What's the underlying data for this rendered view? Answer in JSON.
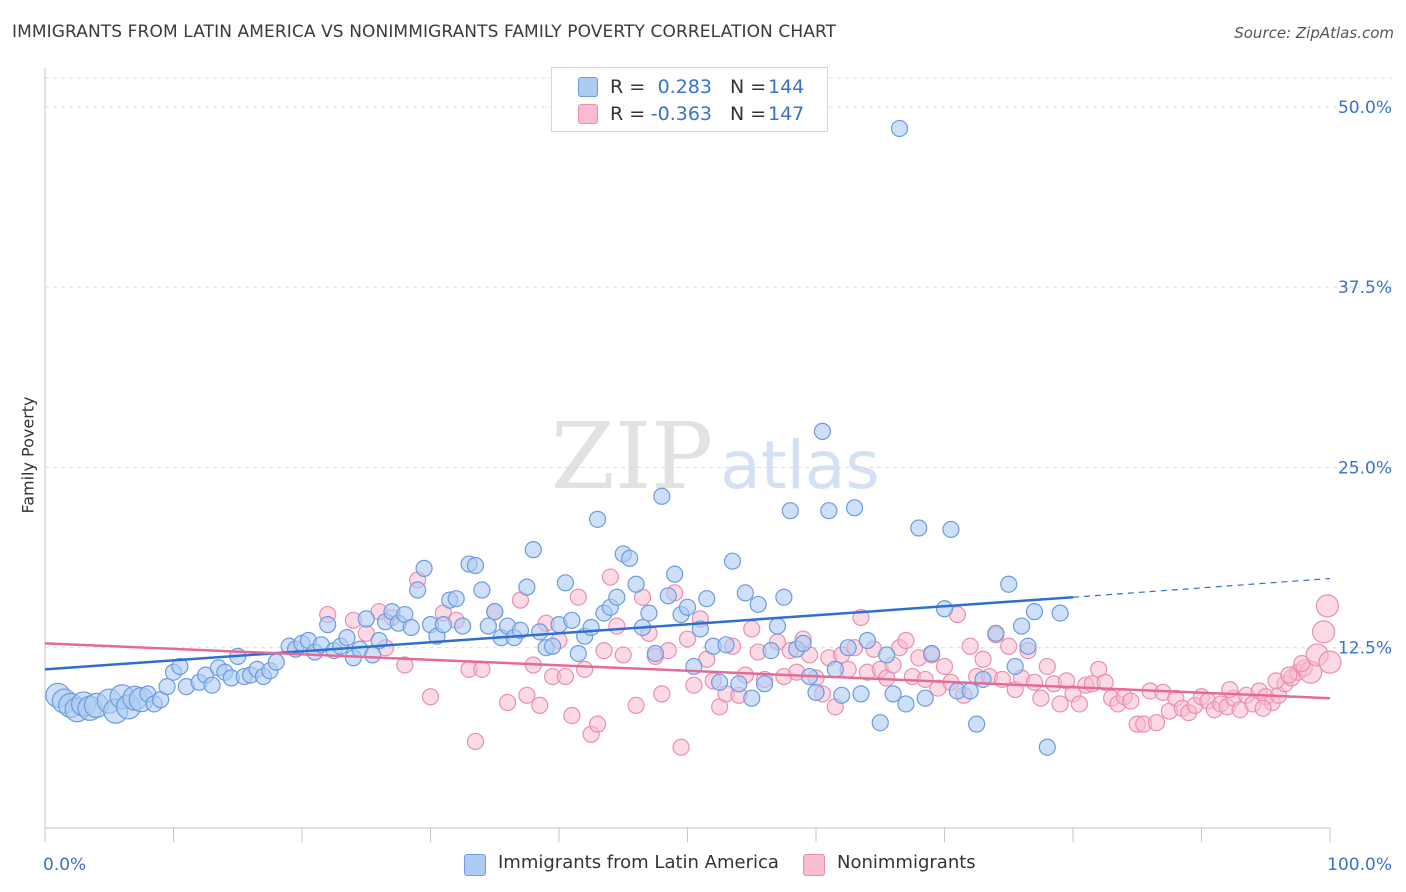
{
  "title": "IMMIGRANTS FROM LATIN AMERICA VS NONIMMIGRANTS FAMILY POVERTY CORRELATION CHART",
  "source": "Source: ZipAtlas.com",
  "watermark": {
    "zip": "ZIP",
    "atlas": "atlas"
  },
  "legend": {
    "series1": {
      "r_label": "R =",
      "r_value": "0.283",
      "n_label": "N =",
      "n_value": "144"
    },
    "series2": {
      "r_label": "R =",
      "r_value": "-0.363",
      "n_label": "N =",
      "n_value": "147"
    }
  },
  "colors": {
    "blue_fill": "#aecbf1",
    "blue_stroke": "#6c9be0",
    "blue_line": "#2f6fd0",
    "pink_fill": "#f7bccf",
    "pink_stroke": "#ea8fae",
    "pink_line": "#e66a96",
    "value_text": "#3a72c8",
    "grid": "#dcdcdc"
  },
  "chart_data": {
    "type": "scatter",
    "xlabel": "",
    "ylabel": "Family Poverty",
    "xlim": [
      0,
      100
    ],
    "ylim": [
      0,
      52
    ],
    "x_tick_labels": [
      "0.0%",
      "100.0%"
    ],
    "y_ticks": [
      {
        "value": 12.5,
        "label": "12.5%"
      },
      {
        "value": 25.0,
        "label": "25.0%"
      },
      {
        "value": 37.5,
        "label": "37.5%"
      },
      {
        "value": 50.0,
        "label": "50.0%"
      }
    ],
    "grid": "horizontal dashed",
    "legend_position": "top-center, bottom-center",
    "series": [
      {
        "name": "Immigrants from Latin America",
        "r": 0.283,
        "n": 144,
        "trend": {
          "x0": 0,
          "y0": 11.0,
          "x1": 80,
          "y1": 16.0,
          "dashed_to_x": 100,
          "dashed_to_y": 17.3
        },
        "points": [
          [
            1,
            9.2
          ],
          [
            1.5,
            8.8
          ],
          [
            2,
            8.5
          ],
          [
            2.5,
            8.2
          ],
          [
            3,
            8.6
          ],
          [
            3.5,
            8.3
          ],
          [
            4,
            8.5
          ],
          [
            5,
            8.8
          ],
          [
            5.5,
            8.1
          ],
          [
            6,
            9.1
          ],
          [
            6.5,
            8.4
          ],
          [
            7,
            9.0
          ],
          [
            7.5,
            8.9
          ],
          [
            8,
            9.3
          ],
          [
            8.5,
            8.6
          ],
          [
            9,
            8.9
          ],
          [
            9.5,
            9.8
          ],
          [
            10,
            10.8
          ],
          [
            10.5,
            11.2
          ],
          [
            11,
            9.8
          ],
          [
            12,
            10.1
          ],
          [
            12.5,
            10.6
          ],
          [
            13,
            9.9
          ],
          [
            13.5,
            11.1
          ],
          [
            14,
            10.8
          ],
          [
            14.5,
            10.4
          ],
          [
            15,
            11.9
          ],
          [
            15.5,
            10.5
          ],
          [
            16,
            10.6
          ],
          [
            16.5,
            11.0
          ],
          [
            17,
            10.5
          ],
          [
            17.5,
            10.9
          ],
          [
            18,
            11.5
          ],
          [
            19,
            12.6
          ],
          [
            19.5,
            12.4
          ],
          [
            20,
            12.8
          ],
          [
            20.5,
            13.0
          ],
          [
            21,
            12.2
          ],
          [
            21.5,
            12.7
          ],
          [
            22,
            14.1
          ],
          [
            22.5,
            12.3
          ],
          [
            23,
            12.6
          ],
          [
            23.5,
            13.2
          ],
          [
            24,
            11.8
          ],
          [
            24.5,
            12.4
          ],
          [
            25,
            14.5
          ],
          [
            25.5,
            12.0
          ],
          [
            26,
            13.0
          ],
          [
            26.5,
            14.3
          ],
          [
            27,
            15.0
          ],
          [
            27.5,
            14.2
          ],
          [
            28,
            14.8
          ],
          [
            28.5,
            13.9
          ],
          [
            29,
            16.5
          ],
          [
            29.5,
            18.0
          ],
          [
            30,
            14.1
          ],
          [
            30.5,
            13.3
          ],
          [
            31,
            14.1
          ],
          [
            31.5,
            15.8
          ],
          [
            32,
            15.9
          ],
          [
            32.5,
            14.0
          ],
          [
            33,
            18.3
          ],
          [
            33.5,
            18.2
          ],
          [
            34,
            16.5
          ],
          [
            34.5,
            14.0
          ],
          [
            35,
            15.0
          ],
          [
            35.5,
            13.2
          ],
          [
            36,
            14.0
          ],
          [
            36.5,
            13.2
          ],
          [
            37,
            13.7
          ],
          [
            37.5,
            16.7
          ],
          [
            38,
            19.3
          ],
          [
            38.5,
            13.6
          ],
          [
            39,
            12.5
          ],
          [
            39.5,
            12.6
          ],
          [
            40,
            14.1
          ],
          [
            40.5,
            17.0
          ],
          [
            41,
            14.4
          ],
          [
            41.5,
            12.1
          ],
          [
            42,
            13.3
          ],
          [
            42.5,
            13.9
          ],
          [
            43,
            21.4
          ],
          [
            43.5,
            14.9
          ],
          [
            44,
            15.3
          ],
          [
            44.5,
            16.0
          ],
          [
            45,
            19.0
          ],
          [
            45.5,
            18.7
          ],
          [
            46,
            16.9
          ],
          [
            46.5,
            13.9
          ],
          [
            47,
            14.9
          ],
          [
            47.5,
            12.1
          ],
          [
            48,
            23.0
          ],
          [
            48.5,
            16.1
          ],
          [
            49,
            17.6
          ],
          [
            49.5,
            14.8
          ],
          [
            50,
            15.3
          ],
          [
            50.5,
            11.2
          ],
          [
            51,
            13.8
          ],
          [
            51.5,
            15.9
          ],
          [
            52,
            12.6
          ],
          [
            52.5,
            10.1
          ],
          [
            53,
            12.7
          ],
          [
            53.5,
            18.5
          ],
          [
            54,
            10.0
          ],
          [
            54.5,
            16.3
          ],
          [
            55,
            9.0
          ],
          [
            55.5,
            15.5
          ],
          [
            56,
            10.0
          ],
          [
            56.5,
            12.3
          ],
          [
            57,
            14.0
          ],
          [
            57.5,
            16.0
          ],
          [
            58,
            22.0
          ],
          [
            58.5,
            12.4
          ],
          [
            59,
            12.8
          ],
          [
            59.5,
            10.5
          ],
          [
            60,
            9.4
          ],
          [
            60.5,
            27.5
          ],
          [
            61,
            22.0
          ],
          [
            61.5,
            11.0
          ],
          [
            62,
            9.2
          ],
          [
            62.5,
            12.5
          ],
          [
            63,
            22.2
          ],
          [
            63.5,
            9.3
          ],
          [
            64,
            13.0
          ],
          [
            65,
            7.3
          ],
          [
            65.5,
            12.0
          ],
          [
            66,
            9.3
          ],
          [
            66.5,
            48.5
          ],
          [
            67,
            8.6
          ],
          [
            68,
            20.8
          ],
          [
            68.5,
            9.0
          ],
          [
            69,
            12.1
          ],
          [
            70,
            15.2
          ],
          [
            70.5,
            20.7
          ],
          [
            71,
            9.5
          ],
          [
            72,
            9.5
          ],
          [
            72.5,
            7.2
          ],
          [
            73,
            10.3
          ],
          [
            74,
            13.5
          ],
          [
            75,
            16.9
          ],
          [
            75.5,
            11.2
          ],
          [
            76,
            14.0
          ],
          [
            76.5,
            12.6
          ],
          [
            77,
            15.0
          ],
          [
            78,
            5.6
          ],
          [
            79,
            14.9
          ]
        ]
      },
      {
        "name": "Nonimmigrants",
        "r": -0.363,
        "n": 147,
        "trend": {
          "x0": 0,
          "y0": 12.8,
          "x1": 100,
          "y1": 9.0
        },
        "points": [
          [
            22,
            14.8
          ],
          [
            24,
            14.4
          ],
          [
            25,
            13.5
          ],
          [
            26,
            15.0
          ],
          [
            26.5,
            12.5
          ],
          [
            27,
            14.6
          ],
          [
            28,
            11.3
          ],
          [
            29,
            17.2
          ],
          [
            30,
            9.1
          ],
          [
            31,
            14.9
          ],
          [
            32,
            14.4
          ],
          [
            33,
            11.0
          ],
          [
            33.5,
            6.0
          ],
          [
            34,
            11.0
          ],
          [
            35,
            15.0
          ],
          [
            36,
            8.7
          ],
          [
            37,
            15.8
          ],
          [
            37.5,
            9.2
          ],
          [
            38,
            11.3
          ],
          [
            38.5,
            8.5
          ],
          [
            39,
            14.2
          ],
          [
            39.5,
            10.5
          ],
          [
            40,
            13.0
          ],
          [
            40.5,
            10.5
          ],
          [
            41,
            7.8
          ],
          [
            41.5,
            16.0
          ],
          [
            42,
            11.0
          ],
          [
            42.5,
            6.5
          ],
          [
            43,
            7.2
          ],
          [
            43.5,
            12.3
          ],
          [
            44,
            17.4
          ],
          [
            44.5,
            14.0
          ],
          [
            45,
            12.0
          ],
          [
            46,
            8.5
          ],
          [
            46.5,
            16.0
          ],
          [
            47,
            13.5
          ],
          [
            47.5,
            11.9
          ],
          [
            48,
            9.3
          ],
          [
            48.5,
            12.3
          ],
          [
            49,
            16.3
          ],
          [
            49.5,
            5.6
          ],
          [
            50,
            13.1
          ],
          [
            50.5,
            9.9
          ],
          [
            51,
            14.5
          ],
          [
            51.5,
            11.7
          ],
          [
            52,
            10.2
          ],
          [
            52.5,
            8.4
          ],
          [
            53,
            9.3
          ],
          [
            53.5,
            12.6
          ],
          [
            54,
            9.2
          ],
          [
            54.5,
            10.6
          ],
          [
            55,
            13.8
          ],
          [
            55.5,
            12.2
          ],
          [
            56,
            10.3
          ],
          [
            57,
            12.9
          ],
          [
            57.5,
            10.5
          ],
          [
            58,
            12.3
          ],
          [
            58.5,
            10.8
          ],
          [
            59,
            13.1
          ],
          [
            59.5,
            12.0
          ],
          [
            60,
            10.4
          ],
          [
            60.5,
            9.3
          ],
          [
            61,
            11.8
          ],
          [
            61.5,
            8.4
          ],
          [
            62,
            12.0
          ],
          [
            62.5,
            11.0
          ],
          [
            63,
            12.5
          ],
          [
            63.5,
            14.6
          ],
          [
            64,
            10.8
          ],
          [
            64.5,
            12.4
          ],
          [
            65,
            11.0
          ],
          [
            65.5,
            10.4
          ],
          [
            66,
            11.3
          ],
          [
            66.5,
            12.5
          ],
          [
            67,
            13.0
          ],
          [
            67.5,
            10.5
          ],
          [
            68,
            11.8
          ],
          [
            68.5,
            10.3
          ],
          [
            69,
            12.0
          ],
          [
            69.5,
            9.7
          ],
          [
            70,
            11.2
          ],
          [
            70.5,
            10.1
          ],
          [
            71,
            14.8
          ],
          [
            71.5,
            9.2
          ],
          [
            72,
            12.6
          ],
          [
            72.5,
            10.5
          ],
          [
            73,
            11.7
          ],
          [
            73.5,
            10.5
          ],
          [
            74,
            13.4
          ],
          [
            74.5,
            10.3
          ],
          [
            75,
            12.6
          ],
          [
            75.5,
            9.6
          ],
          [
            76,
            10.4
          ],
          [
            76.5,
            12.3
          ],
          [
            77,
            10.1
          ],
          [
            77.5,
            9.0
          ],
          [
            78,
            11.2
          ],
          [
            78.5,
            10.0
          ],
          [
            79,
            8.6
          ],
          [
            79.5,
            10.2
          ],
          [
            80,
            9.3
          ],
          [
            80.5,
            8.6
          ],
          [
            81,
            9.9
          ],
          [
            81.5,
            10.0
          ],
          [
            82,
            11.0
          ],
          [
            82.5,
            10.1
          ],
          [
            83,
            9.0
          ],
          [
            83.5,
            8.6
          ],
          [
            84,
            9.1
          ],
          [
            84.5,
            8.8
          ],
          [
            85,
            7.2
          ],
          [
            85.5,
            7.2
          ],
          [
            86,
            9.5
          ],
          [
            86.5,
            7.3
          ],
          [
            87,
            9.4
          ],
          [
            87.5,
            8.1
          ],
          [
            88,
            9.0
          ],
          [
            88.5,
            8.3
          ],
          [
            89,
            8.0
          ],
          [
            89.5,
            8.5
          ],
          [
            90,
            9.1
          ],
          [
            90.5,
            8.8
          ],
          [
            91,
            8.2
          ],
          [
            91.5,
            8.6
          ],
          [
            92,
            8.4
          ],
          [
            92.5,
            9.0
          ],
          [
            93,
            8.2
          ],
          [
            93.5,
            9.2
          ],
          [
            94,
            8.6
          ],
          [
            94.5,
            9.5
          ],
          [
            95,
            9.1
          ],
          [
            95.5,
            8.7
          ],
          [
            96,
            9.2
          ],
          [
            96.5,
            10.0
          ],
          [
            97,
            10.4
          ],
          [
            97.5,
            10.8
          ],
          [
            98,
            11.1
          ],
          [
            98.5,
            10.8
          ],
          [
            99,
            12.0
          ],
          [
            99.5,
            13.6
          ],
          [
            99.8,
            15.4
          ],
          [
            100,
            11.5
          ],
          [
            94.8,
            8.3
          ],
          [
            95.8,
            10.2
          ],
          [
            96.8,
            10.6
          ],
          [
            97.8,
            11.4
          ],
          [
            92.2,
            9.6
          ]
        ]
      }
    ]
  }
}
